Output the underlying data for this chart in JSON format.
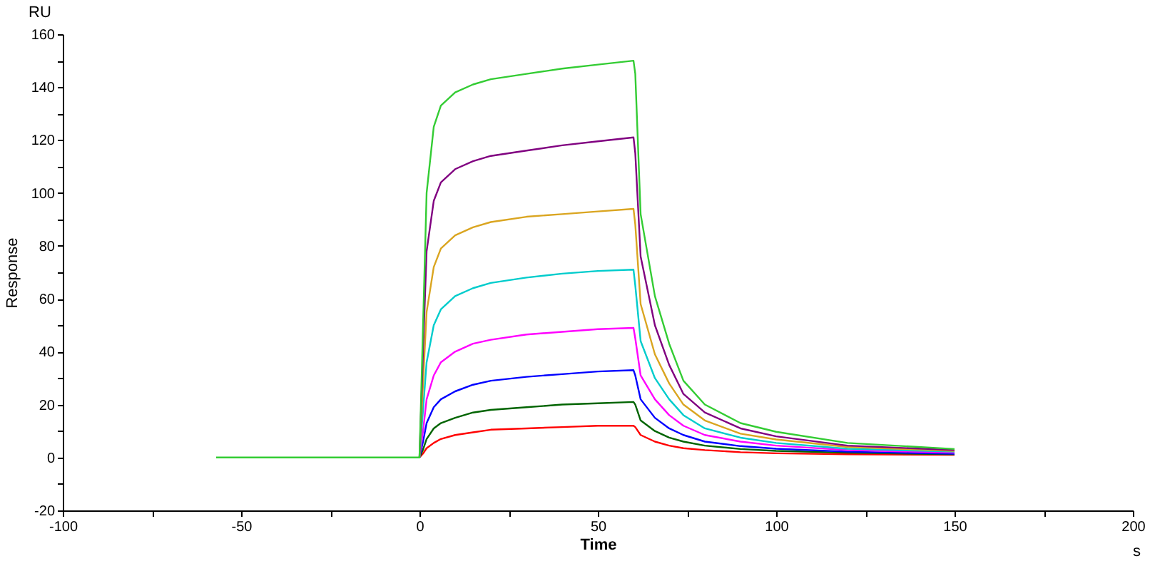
{
  "chart_data": {
    "type": "line",
    "xlabel": "Time",
    "ylabel": "Response",
    "annotations": [
      "RU",
      "s"
    ],
    "x": [
      -57,
      -30,
      0,
      1,
      2,
      4,
      6,
      10,
      15,
      20,
      30,
      40,
      50,
      60,
      60.5,
      62,
      66,
      70,
      74,
      80,
      90,
      100,
      120,
      150
    ],
    "series": [
      {
        "color": "#ff0000",
        "values": [
          null,
          null,
          0,
          1.5,
          3.5,
          5.5,
          7,
          8.5,
          9.5,
          10.5,
          11,
          11.5,
          12,
          12,
          11.5,
          8.5,
          6,
          4.5,
          3.5,
          2.8,
          2,
          1.6,
          1.2,
          1.0
        ]
      },
      {
        "color": "#006400",
        "values": [
          null,
          null,
          0,
          3,
          7,
          11,
          13,
          15,
          17,
          18,
          19,
          20,
          20.5,
          21,
          20,
          14,
          10,
          7.5,
          6,
          4.5,
          3.2,
          2.5,
          1.8,
          1.2
        ]
      },
      {
        "color": "#0000ff",
        "values": [
          null,
          null,
          0,
          6,
          13,
          19,
          22,
          25,
          27.5,
          29,
          30.5,
          31.5,
          32.5,
          33,
          31,
          22,
          15,
          11,
          8.5,
          6,
          4.3,
          3.3,
          2.2,
          1.4
        ]
      },
      {
        "color": "#ff00ff",
        "values": [
          null,
          null,
          0,
          10,
          22,
          31,
          36,
          40,
          43,
          44.5,
          46.5,
          47.5,
          48.5,
          49,
          45,
          31,
          22,
          16,
          12,
          8.5,
          6,
          4.5,
          2.8,
          1.8
        ]
      },
      {
        "color": "#00cccc",
        "values": [
          null,
          null,
          0,
          18,
          36,
          50,
          56,
          61,
          64,
          66,
          68,
          69.5,
          70.5,
          71,
          65,
          44,
          30,
          22,
          16,
          11,
          7.5,
          5.5,
          3.3,
          2.2
        ]
      },
      {
        "color": "#daa520",
        "values": [
          null,
          null,
          0,
          28,
          55,
          72,
          79,
          84,
          87,
          89,
          91,
          92,
          93,
          94,
          88,
          58,
          39,
          28,
          20,
          14,
          9,
          6.8,
          4,
          2.5
        ]
      },
      {
        "color": "#800080",
        "values": [
          null,
          null,
          0,
          40,
          78,
          97,
          104,
          109,
          112,
          114,
          116,
          118,
          119.5,
          121,
          115,
          76,
          50,
          35,
          24,
          17,
          11,
          8,
          4.5,
          2.8
        ]
      },
      {
        "color": "#33cc33",
        "values": [
          0,
          0,
          0,
          50,
          100,
          125,
          133,
          138,
          141,
          143,
          145,
          147,
          148.5,
          150,
          145,
          92,
          61,
          43,
          29,
          20,
          13,
          9.7,
          5.5,
          3.2
        ]
      }
    ],
    "xlim": [
      -100,
      200
    ],
    "xticks": [
      -100,
      {
        "value": -75,
        "label": null
      },
      -50,
      {
        "value": -25,
        "label": null
      },
      0,
      {
        "value": 25,
        "label": null
      },
      50,
      {
        "value": 75,
        "label": null
      },
      100,
      {
        "value": 125,
        "label": null
      },
      150,
      {
        "value": 175,
        "label": null
      },
      200
    ],
    "ylim": [
      -20,
      160
    ],
    "yticks": [
      -20,
      {
        "value": -10,
        "label": null
      },
      0,
      {
        "value": 10,
        "label": null
      },
      20,
      {
        "value": 30,
        "label": null
      },
      40,
      {
        "value": 50,
        "label": null
      },
      60,
      {
        "value": 70,
        "label": null
      },
      80,
      {
        "value": 90,
        "label": null
      },
      100,
      {
        "value": 110,
        "label": null
      },
      120,
      {
        "value": 130,
        "label": null
      },
      140,
      {
        "value": 150,
        "label": null
      },
      160
    ],
    "grid": false,
    "legend": false,
    "marker": "none",
    "line_style": "solid"
  }
}
